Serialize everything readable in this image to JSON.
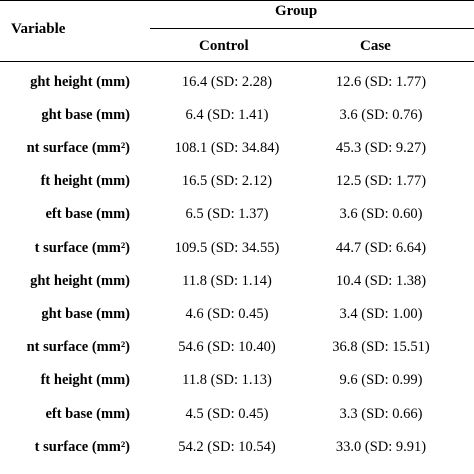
{
  "table": {
    "header": {
      "variable": "Variable",
      "group": "Group",
      "control": "Control",
      "case": "Case"
    },
    "rows": [
      {
        "variable": "ght height (mm)",
        "control": "16.4 (SD: 2.28)",
        "case": "12.6 (SD: 1.77)"
      },
      {
        "variable": "ght base (mm)",
        "control": "6.4 (SD: 1.41)",
        "case": "3.6 (SD: 0.76)"
      },
      {
        "variable": "nt surface (mm²)",
        "control": "108.1 (SD: 34.84)",
        "case": "45.3 (SD: 9.27)"
      },
      {
        "variable": "ft height (mm)",
        "control": "16.5 (SD: 2.12)",
        "case": "12.5 (SD: 1.77)"
      },
      {
        "variable": "eft base (mm)",
        "control": "6.5 (SD: 1.37)",
        "case": "3.6 (SD: 0.60)"
      },
      {
        "variable": "t surface (mm²)",
        "control": "109.5 (SD: 34.55)",
        "case": "44.7 (SD: 6.64)"
      },
      {
        "variable": "ght height (mm)",
        "control": "11.8 (SD: 1.14)",
        "case": "10.4 (SD: 1.38)"
      },
      {
        "variable": "ght base (mm)",
        "control": "4.6 (SD: 0.45)",
        "case": "3.4 (SD: 1.00)"
      },
      {
        "variable": "nt surface (mm²)",
        "control": "54.6 (SD: 10.40)",
        "case": "36.8 (SD: 15.51)"
      },
      {
        "variable": "ft height (mm)",
        "control": "11.8 (SD: 1.13)",
        "case": "9.6 (SD: 0.99)"
      },
      {
        "variable": "eft base (mm)",
        "control": "4.5 (SD: 0.45)",
        "case": "3.3 (SD: 0.66)"
      },
      {
        "variable": "t surface (mm²)",
        "control": "54.2 (SD: 10.54)",
        "case": "33.0 (SD: 9.91)"
      }
    ]
  }
}
